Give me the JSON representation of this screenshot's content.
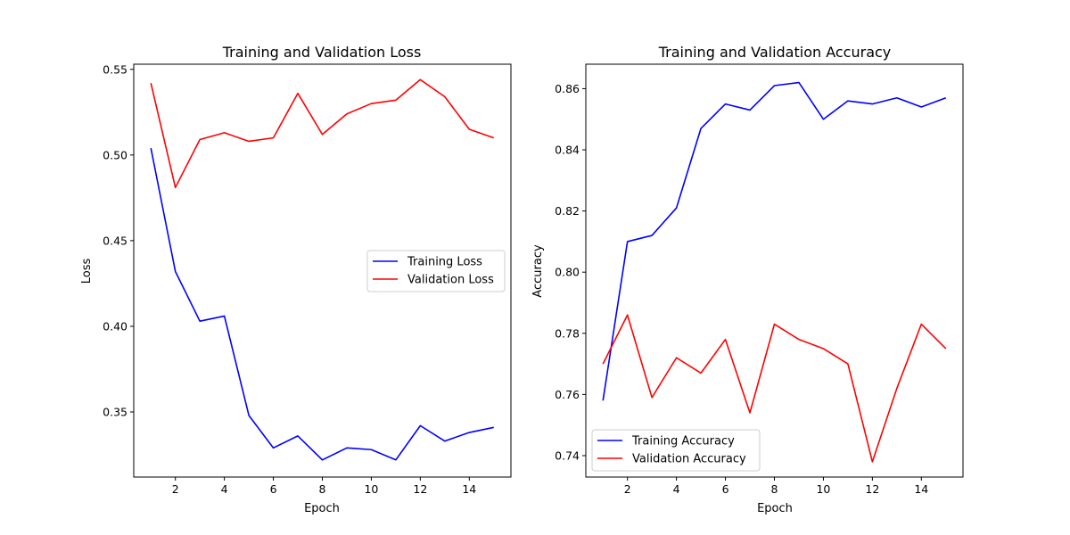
{
  "chart_data": [
    {
      "type": "line",
      "title": "Training and Validation Loss",
      "xlabel": "Epoch",
      "ylabel": "Loss",
      "xlim": [
        0.3,
        15.7
      ],
      "ylim": [
        0.312,
        0.553
      ],
      "xticks": [
        2,
        4,
        6,
        8,
        10,
        12,
        14
      ],
      "yticks": [
        0.35,
        0.4,
        0.45,
        0.5,
        0.55
      ],
      "ytick_labels": [
        "0.35",
        "0.40",
        "0.45",
        "0.50",
        "0.55"
      ],
      "grid": false,
      "legend_position": "center-right",
      "x": [
        1,
        2,
        3,
        4,
        5,
        6,
        7,
        8,
        9,
        10,
        11,
        12,
        13,
        14,
        15
      ],
      "series": [
        {
          "name": "Training Loss",
          "color": "#0000ff",
          "values": [
            0.504,
            0.432,
            0.403,
            0.406,
            0.348,
            0.329,
            0.336,
            0.322,
            0.329,
            0.328,
            0.322,
            0.342,
            0.333,
            0.338,
            0.341
          ]
        },
        {
          "name": "Validation Loss",
          "color": "#ff0000",
          "values": [
            0.542,
            0.481,
            0.509,
            0.513,
            0.508,
            0.51,
            0.536,
            0.512,
            0.524,
            0.53,
            0.532,
            0.544,
            0.534,
            0.515,
            0.51
          ]
        }
      ]
    },
    {
      "type": "line",
      "title": "Training and Validation Accuracy",
      "xlabel": "Epoch",
      "ylabel": "Accuracy",
      "xlim": [
        0.3,
        15.7
      ],
      "ylim": [
        0.733,
        0.868
      ],
      "xticks": [
        2,
        4,
        6,
        8,
        10,
        12,
        14
      ],
      "yticks": [
        0.74,
        0.76,
        0.78,
        0.8,
        0.82,
        0.84,
        0.86
      ],
      "ytick_labels": [
        "0.74",
        "0.76",
        "0.78",
        "0.80",
        "0.82",
        "0.84",
        "0.86"
      ],
      "grid": false,
      "legend_position": "lower-left",
      "x": [
        1,
        2,
        3,
        4,
        5,
        6,
        7,
        8,
        9,
        10,
        11,
        12,
        13,
        14,
        15
      ],
      "series": [
        {
          "name": "Training Accuracy",
          "color": "#0000ff",
          "values": [
            0.758,
            0.81,
            0.812,
            0.821,
            0.847,
            0.855,
            0.853,
            0.861,
            0.862,
            0.85,
            0.856,
            0.855,
            0.857,
            0.854,
            0.857
          ]
        },
        {
          "name": "Validation Accuracy",
          "color": "#ff0000",
          "values": [
            0.77,
            0.786,
            0.759,
            0.772,
            0.767,
            0.778,
            0.754,
            0.783,
            0.778,
            0.775,
            0.77,
            0.738,
            0.762,
            0.783,
            0.775
          ]
        }
      ]
    }
  ]
}
